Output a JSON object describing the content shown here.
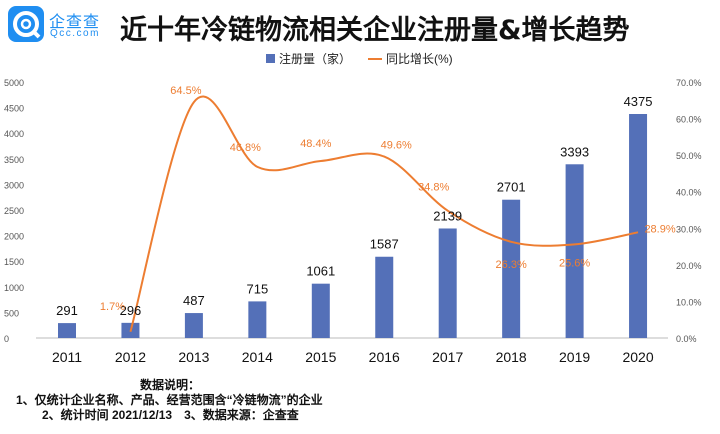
{
  "logo": {
    "cn": "企查查",
    "en": "Qcc.com"
  },
  "title": "近十年冷链物流相关企业注册量&增长趋势",
  "chart_data": {
    "type": "bar+line",
    "title": "近十年冷链物流相关企业注册量&增长趋势",
    "categories": [
      "2011",
      "2012",
      "2013",
      "2014",
      "2015",
      "2016",
      "2017",
      "2018",
      "2019",
      "2020"
    ],
    "series": [
      {
        "name": "注册量（家）",
        "type": "bar",
        "axis": "left",
        "color": "#5470b8",
        "values": [
          291,
          296,
          487,
          715,
          1061,
          1587,
          2139,
          2701,
          3393,
          4375
        ],
        "labels": [
          "291",
          "296",
          "487",
          "715",
          "1061",
          "1587",
          "2139",
          "2701",
          "3393",
          "4375"
        ]
      },
      {
        "name": "同比增长(%)",
        "type": "line",
        "axis": "right",
        "color": "#ed7d31",
        "values": [
          null,
          1.7,
          64.5,
          46.8,
          48.4,
          49.6,
          34.8,
          26.3,
          25.6,
          28.9
        ],
        "labels": [
          "",
          "1.7%",
          "64.5%",
          "46.8%",
          "48.4%",
          "49.6%",
          "34.8%",
          "26.3%",
          "25.6%",
          "28.9%"
        ]
      }
    ],
    "yleft": {
      "lim": [
        0,
        5000
      ],
      "ticks": [
        "0",
        "500",
        "1000",
        "1500",
        "2000",
        "2500",
        "3000",
        "3500",
        "4000",
        "4500",
        "5000"
      ]
    },
    "yright": {
      "lim": [
        0,
        70
      ],
      "ticks": [
        "0.0%",
        "10.0%",
        "20.0%",
        "30.0%",
        "40.0%",
        "50.0%",
        "60.0%",
        "70.0%"
      ]
    },
    "legend": "top-center",
    "grid": false
  },
  "notes": {
    "heading": "数据说明：",
    "line1": "1、仅统计企业名称、产品、经营范围含“冷链物流”的企业",
    "line2": "2、统计时间 2021/12/13　3、数据来源：企查查"
  }
}
